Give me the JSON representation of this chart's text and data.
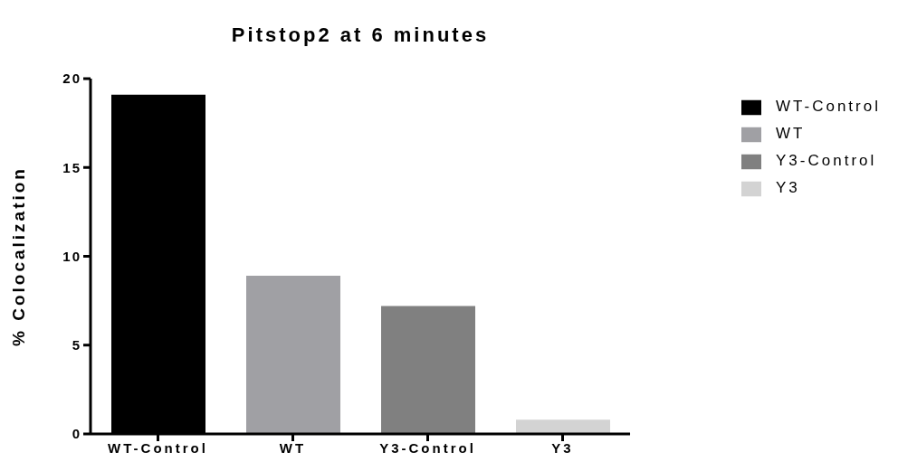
{
  "chart_data": {
    "type": "bar",
    "title": "Pitstop2 at 6 minutes",
    "ylabel": "% Colocalization",
    "categories": [
      "WT-Control",
      "WT",
      "Y3-Control",
      "Y3"
    ],
    "series": [
      {
        "name": "WT-Control",
        "color": "#000000",
        "values": [
          19.1,
          null,
          null,
          null
        ]
      },
      {
        "name": "WT",
        "color": "#a0a0a4",
        "values": [
          null,
          8.9,
          null,
          null
        ]
      },
      {
        "name": "Y3-Control",
        "color": "#808080",
        "values": [
          null,
          null,
          7.2,
          null
        ]
      },
      {
        "name": "Y3",
        "color": "#d3d3d3",
        "values": [
          null,
          null,
          null,
          0.8
        ]
      }
    ],
    "ylim": [
      0,
      20
    ],
    "yticks": [
      0,
      5,
      10,
      15,
      20
    ],
    "legend": "right"
  }
}
